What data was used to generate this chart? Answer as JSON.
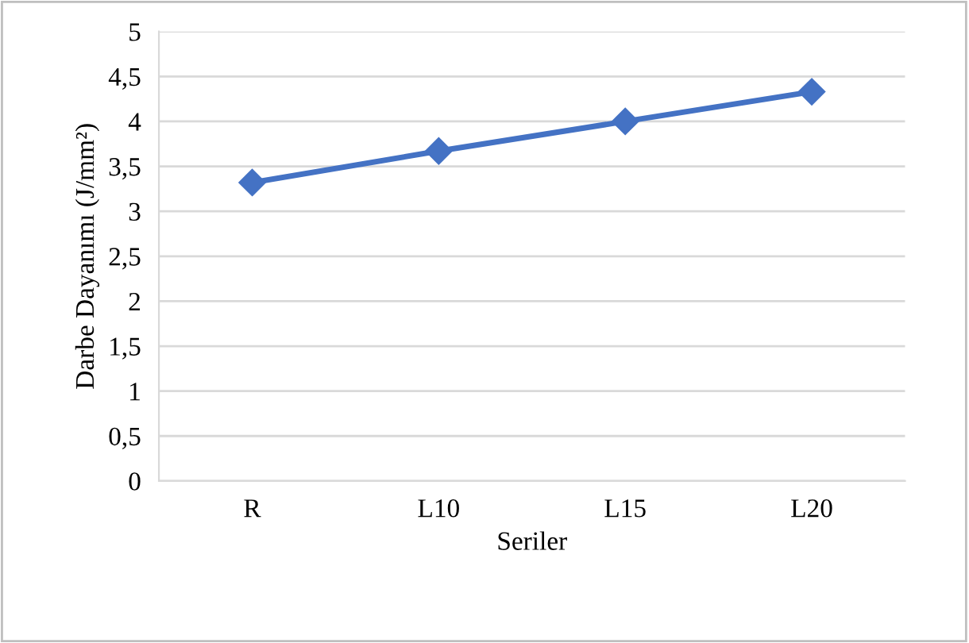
{
  "chart_data": {
    "type": "line",
    "xlabel": "Seriler",
    "ylabel": "Darbe Dayanımı (J/mm²)",
    "categories": [
      "R",
      "L10",
      "L15",
      "L20"
    ],
    "series": [
      {
        "color": "#4472c4",
        "values": [
          3.32,
          3.67,
          4.0,
          4.33
        ]
      }
    ],
    "ylim": [
      0,
      5
    ],
    "yticks": [
      0,
      {
        "value": 0.5,
        "label": "0,5"
      },
      1,
      {
        "value": 1.5,
        "label": "1,5"
      },
      2,
      {
        "value": 2.5,
        "label": "2,5"
      },
      3,
      {
        "value": 3.5,
        "label": "3,5"
      },
      4,
      {
        "value": 4.5,
        "label": "4,5"
      },
      5
    ],
    "grid": "y",
    "marker": "diamond",
    "line_style": "solid"
  }
}
